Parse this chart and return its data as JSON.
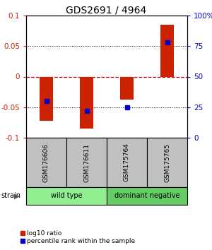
{
  "title": "GDS2691 / 4964",
  "samples": [
    "GSM176606",
    "GSM176611",
    "GSM175764",
    "GSM175765"
  ],
  "log10_ratio": [
    -0.072,
    -0.085,
    -0.038,
    0.085
  ],
  "percentile_rank": [
    30,
    22,
    25,
    78
  ],
  "groups": [
    {
      "label": "wild type",
      "samples": [
        0,
        1
      ],
      "color": "#90EE90"
    },
    {
      "label": "dominant negative",
      "samples": [
        2,
        3
      ],
      "color": "#66CC66"
    }
  ],
  "ylim": [
    -0.1,
    0.1
  ],
  "y2lim": [
    0,
    100
  ],
  "yticks": [
    -0.1,
    -0.05,
    0,
    0.05,
    0.1
  ],
  "y2ticks": [
    0,
    25,
    50,
    75,
    100
  ],
  "bar_color": "#CC2200",
  "dot_color": "#0000CC",
  "hline_color": "#CC0000",
  "legend_items": [
    "log10 ratio",
    "percentile rank within the sample"
  ],
  "group_colors": [
    "#90EE90",
    "#66CC66"
  ],
  "sample_box_color": "#C0C0C0",
  "bar_width": 0.35
}
